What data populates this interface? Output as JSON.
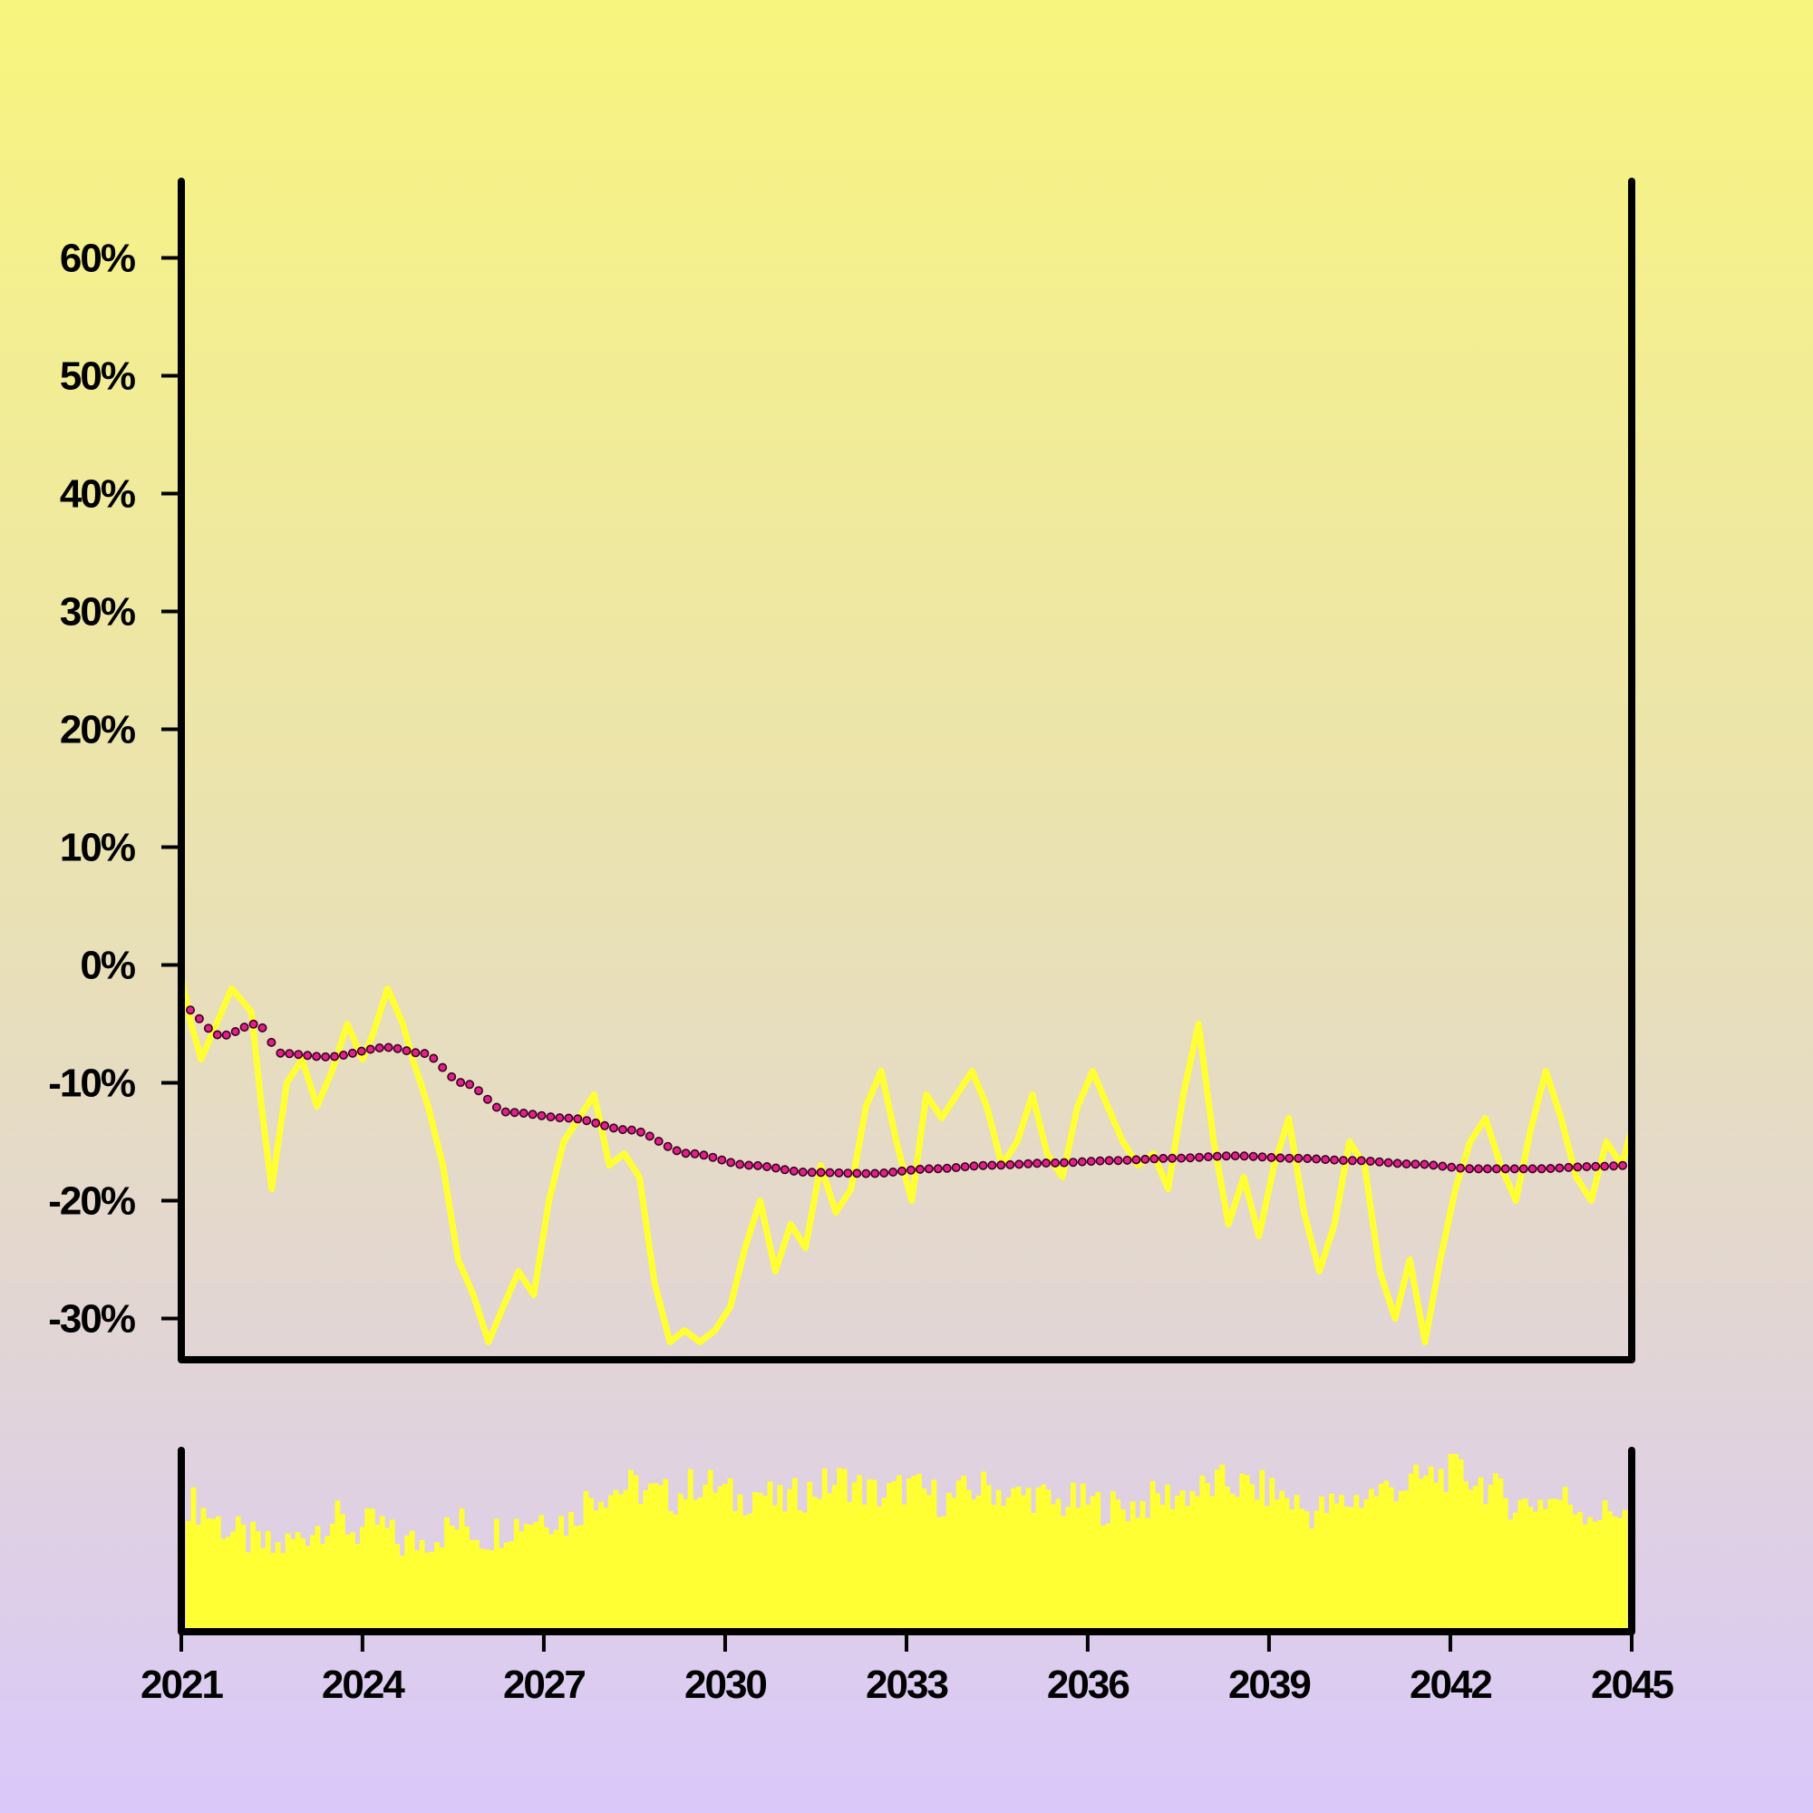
{
  "chart_data": {
    "type": "line",
    "x_domain": [
      "2021-01-01",
      "2045-01-01"
    ],
    "x_ticks": [
      "2021",
      "2024",
      "2027",
      "2030",
      "2033",
      "2036",
      "2039",
      "2042",
      "2045"
    ],
    "y_ticks": [
      "60%",
      "50%",
      "40%",
      "30%",
      "20%",
      "10%",
      "0%",
      "-10%",
      "-20%",
      "-30%"
    ],
    "y_tick_values": [
      60,
      50,
      40,
      30,
      20,
      10,
      0,
      -10,
      -20,
      -30
    ],
    "ylim": [
      -33.5,
      66.5
    ],
    "grid": false,
    "legend": "none",
    "colors": {
      "price_line": "#ffff33",
      "trend_dots": "#e0218a",
      "trend_dot_outline": "#3a0020",
      "volume_bars": "#ffff33",
      "axes": "#000000"
    },
    "series": [
      {
        "kind": "line",
        "points": [
          [
            "2021-01",
            -1
          ],
          [
            "2021-03",
            -5
          ],
          [
            "2021-05",
            -8
          ],
          [
            "2021-07",
            -6
          ],
          [
            "2021-09",
            -4
          ],
          [
            "2021-11",
            -2
          ],
          [
            "2022-01",
            -3
          ],
          [
            "2022-03",
            -4
          ],
          [
            "2022-05",
            -12
          ],
          [
            "2022-07",
            -19
          ],
          [
            "2022-10",
            -10
          ],
          [
            "2023-01",
            -8
          ],
          [
            "2023-04",
            -12
          ],
          [
            "2023-07",
            -9
          ],
          [
            "2023-10",
            -5
          ],
          [
            "2024-01",
            -8
          ],
          [
            "2024-03",
            -6
          ],
          [
            "2024-06",
            -2
          ],
          [
            "2024-09",
            -5
          ],
          [
            "2024-11",
            -8
          ],
          [
            "2025-02",
            -12
          ],
          [
            "2025-05",
            -17
          ],
          [
            "2025-08",
            -25
          ],
          [
            "2025-11",
            -28
          ],
          [
            "2026-02",
            -32
          ],
          [
            "2026-05",
            -29
          ],
          [
            "2026-08",
            -26
          ],
          [
            "2026-11",
            -28
          ],
          [
            "2027-02",
            -20
          ],
          [
            "2027-05",
            -15
          ],
          [
            "2027-08",
            -13
          ],
          [
            "2027-11",
            -11
          ],
          [
            "2028-02",
            -17
          ],
          [
            "2028-05",
            -16
          ],
          [
            "2028-08",
            -18
          ],
          [
            "2028-11",
            -27
          ],
          [
            "2029-02",
            -32
          ],
          [
            "2029-05",
            -31
          ],
          [
            "2029-08",
            -32
          ],
          [
            "2029-11",
            -31
          ],
          [
            "2030-02",
            -29
          ],
          [
            "2030-05",
            -24
          ],
          [
            "2030-08",
            -20
          ],
          [
            "2030-11",
            -26
          ],
          [
            "2031-02",
            -22
          ],
          [
            "2031-05",
            -24
          ],
          [
            "2031-08",
            -17
          ],
          [
            "2031-11",
            -21
          ],
          [
            "2032-02",
            -19
          ],
          [
            "2032-05",
            -12
          ],
          [
            "2032-08",
            -9
          ],
          [
            "2032-11",
            -15
          ],
          [
            "2033-02",
            -20
          ],
          [
            "2033-05",
            -11
          ],
          [
            "2033-08",
            -13
          ],
          [
            "2033-11",
            -11
          ],
          [
            "2034-02",
            -9
          ],
          [
            "2034-05",
            -12
          ],
          [
            "2034-08",
            -17
          ],
          [
            "2034-11",
            -15
          ],
          [
            "2035-02",
            -11
          ],
          [
            "2035-05",
            -16
          ],
          [
            "2035-08",
            -18
          ],
          [
            "2035-11",
            -12
          ],
          [
            "2036-02",
            -9
          ],
          [
            "2036-05",
            -12
          ],
          [
            "2036-08",
            -15
          ],
          [
            "2036-11",
            -17
          ],
          [
            "2037-02",
            -16
          ],
          [
            "2037-05",
            -19
          ],
          [
            "2037-08",
            -11
          ],
          [
            "2037-11",
            -5
          ],
          [
            "2038-02",
            -15
          ],
          [
            "2038-05",
            -22
          ],
          [
            "2038-08",
            -18
          ],
          [
            "2038-11",
            -23
          ],
          [
            "2039-02",
            -17
          ],
          [
            "2039-05",
            -13
          ],
          [
            "2039-08",
            -21
          ],
          [
            "2039-11",
            -26
          ],
          [
            "2040-02",
            -22
          ],
          [
            "2040-05",
            -15
          ],
          [
            "2040-08",
            -17
          ],
          [
            "2040-11",
            -26
          ],
          [
            "2041-02",
            -30
          ],
          [
            "2041-05",
            -25
          ],
          [
            "2041-08",
            -32
          ],
          [
            "2041-11",
            -25
          ],
          [
            "2042-02",
            -19
          ],
          [
            "2042-05",
            -15
          ],
          [
            "2042-08",
            -13
          ],
          [
            "2042-11",
            -17
          ],
          [
            "2043-02",
            -20
          ],
          [
            "2043-05",
            -14
          ],
          [
            "2043-08",
            -9
          ],
          [
            "2043-11",
            -13
          ],
          [
            "2044-02",
            -18
          ],
          [
            "2044-05",
            -20
          ],
          [
            "2044-08",
            -15
          ],
          [
            "2044-11",
            -17
          ],
          [
            "2045-01",
            -14
          ]
        ]
      },
      {
        "kind": "dotted-trend",
        "points": [
          [
            "2021-01",
            -3.5
          ],
          [
            "2021-09",
            -6
          ],
          [
            "2022-04",
            -5
          ],
          [
            "2022-09",
            -7.5
          ],
          [
            "2023-06",
            -7.8
          ],
          [
            "2024-06",
            -7
          ],
          [
            "2025-01",
            -7.5
          ],
          [
            "2025-09",
            -10
          ],
          [
            "2026-06",
            -12.5
          ],
          [
            "2027-06",
            -13
          ],
          [
            "2028-06",
            -14
          ],
          [
            "2029-06",
            -16
          ],
          [
            "2030-06",
            -17
          ],
          [
            "2031-06",
            -17.6
          ],
          [
            "2032-06",
            -17.7
          ],
          [
            "2033-06",
            -17.3
          ],
          [
            "2034-06",
            -17
          ],
          [
            "2035-06",
            -16.8
          ],
          [
            "2036-06",
            -16.6
          ],
          [
            "2037-06",
            -16.4
          ],
          [
            "2038-06",
            -16.2
          ],
          [
            "2039-06",
            -16.4
          ],
          [
            "2040-06",
            -16.6
          ],
          [
            "2041-06",
            -16.9
          ],
          [
            "2042-06",
            -17.3
          ],
          [
            "2043-06",
            -17.3
          ],
          [
            "2044-06",
            -17.1
          ],
          [
            "2045-01",
            -17
          ]
        ]
      },
      {
        "kind": "volume-bars",
        "relative_values": [
          0.72,
          0.65,
          0.55,
          0.5,
          0.45,
          0.5,
          0.58,
          0.62,
          0.55,
          0.6,
          0.48,
          0.5,
          0.55,
          0.6,
          0.52,
          0.58,
          0.62,
          0.65,
          0.6,
          0.75,
          0.78,
          0.8,
          0.76,
          0.74,
          0.82,
          0.8,
          0.72,
          0.78,
          0.7,
          0.76,
          0.8,
          0.84,
          0.78,
          0.75,
          0.8,
          0.76,
          0.72,
          0.78,
          0.8,
          0.74,
          0.76,
          0.7,
          0.72,
          0.7,
          0.68,
          0.7,
          0.74,
          0.76,
          0.78,
          0.82,
          0.8,
          0.78,
          0.74,
          0.66,
          0.68,
          0.72,
          0.76,
          0.8,
          0.82,
          0.86,
          0.88,
          0.84,
          0.76,
          0.7,
          0.72,
          0.74,
          0.68,
          0.64,
          0.7
        ]
      }
    ]
  }
}
